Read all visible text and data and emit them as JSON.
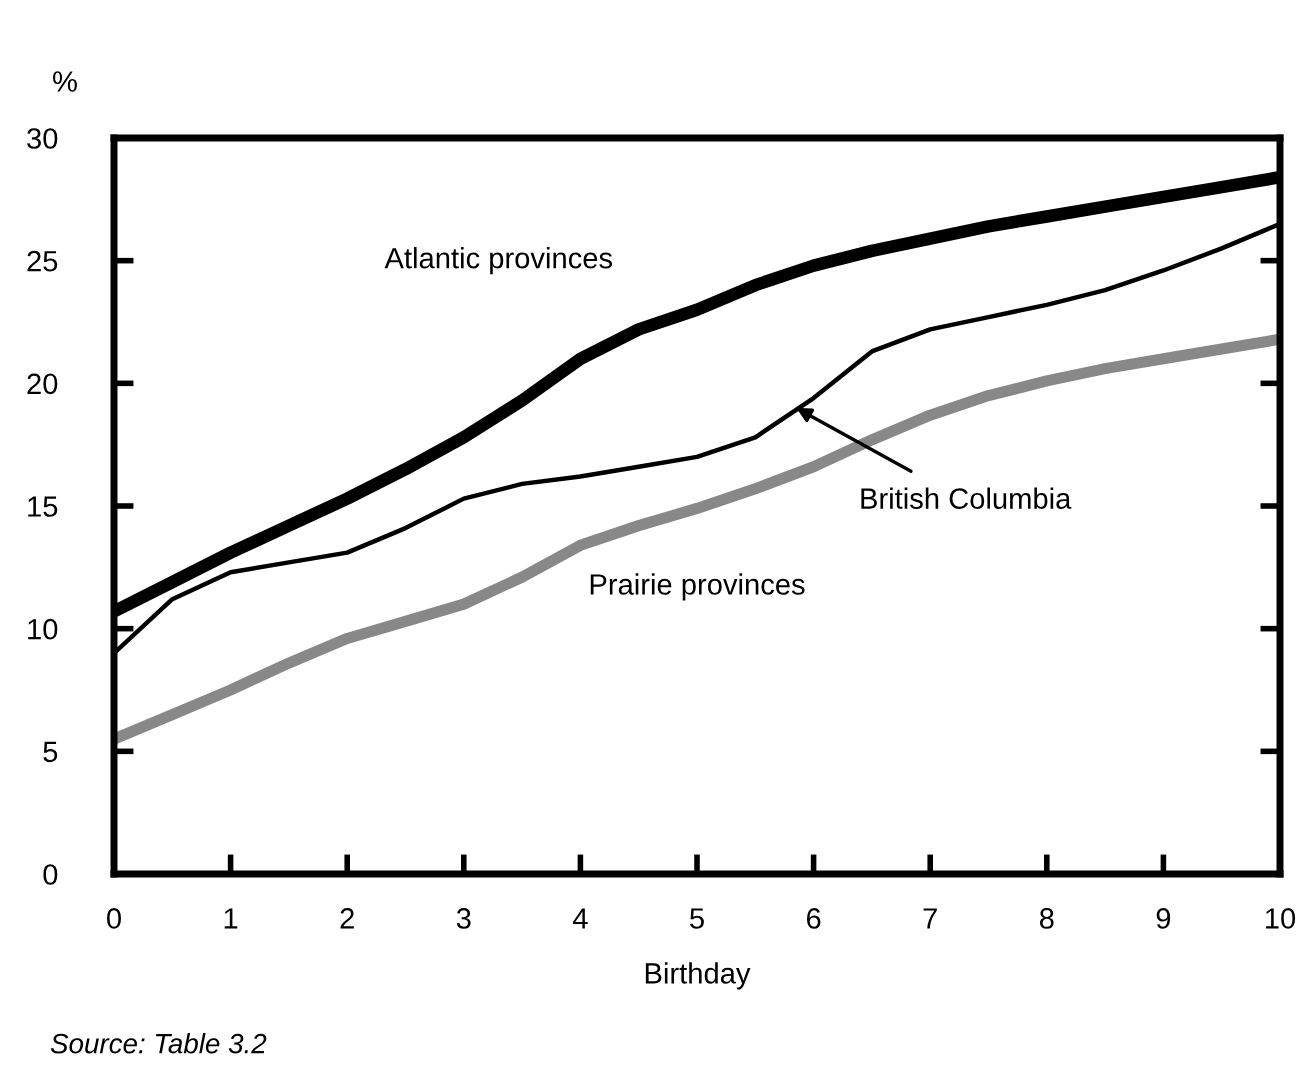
{
  "chart_data": {
    "type": "line",
    "xlabel": "Birthday",
    "ylabel": "%",
    "x": [
      0,
      0.5,
      1,
      1.5,
      2,
      2.5,
      3,
      3.5,
      4,
      4.5,
      5,
      5.5,
      6,
      6.5,
      7,
      7.5,
      8,
      8.5,
      9,
      9.5,
      10
    ],
    "series": [
      {
        "name": "Atlantic provinces",
        "color": "#000000",
        "values": [
          10.7,
          11.9,
          13.1,
          14.2,
          15.3,
          16.5,
          17.8,
          19.3,
          21.0,
          22.2,
          23.0,
          24.0,
          24.8,
          25.4,
          25.9,
          26.4,
          26.8,
          27.2,
          27.6,
          28.0,
          28.4
        ]
      },
      {
        "name": "British Columbia",
        "color": "#000000",
        "values": [
          9.0,
          11.2,
          12.3,
          12.7,
          13.1,
          14.1,
          15.3,
          15.9,
          16.2,
          16.6,
          17.0,
          17.8,
          19.4,
          21.3,
          22.2,
          22.7,
          23.2,
          23.8,
          24.6,
          25.5,
          26.5
        ]
      },
      {
        "name": "Prairie provinces",
        "color": "#888888",
        "values": [
          5.5,
          6.5,
          7.5,
          8.6,
          9.6,
          10.3,
          11.0,
          12.1,
          13.4,
          14.2,
          14.9,
          15.7,
          16.6,
          17.7,
          18.7,
          19.5,
          20.1,
          20.6,
          21.0,
          21.4,
          21.8
        ]
      }
    ],
    "xlim": [
      0,
      10
    ],
    "xticks": [
      0,
      1,
      2,
      3,
      4,
      5,
      6,
      7,
      8,
      9,
      10
    ],
    "ylim": [
      0,
      30
    ],
    "yticks": [
      0,
      5,
      10,
      15,
      20,
      25,
      30
    ],
    "grid": false,
    "marker": "none",
    "line_style": "solid",
    "annotations": [
      "Source: Table 3.2"
    ]
  }
}
